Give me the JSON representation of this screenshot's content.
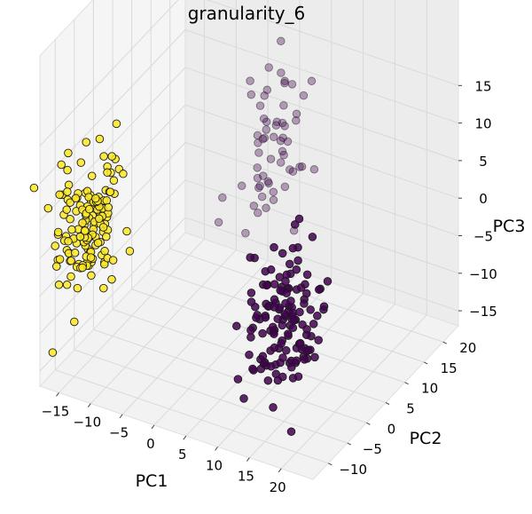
{
  "chart_data": {
    "type": "scatter",
    "title": "granularity_6",
    "xlabel": "PC1",
    "ylabel": "PC2",
    "zlabel": "PC3",
    "xlim": [
      -18,
      25
    ],
    "ylim": [
      -14,
      24
    ],
    "zlim": [
      -17,
      19
    ],
    "xticks": [
      "−15",
      "−10",
      "−5",
      "0",
      "5",
      "10",
      "15",
      "20"
    ],
    "yticks": [
      "−10",
      "−5",
      "0",
      "5",
      "10",
      "15",
      "20"
    ],
    "zticks": [
      "−15",
      "−10",
      "−5",
      "0",
      "5",
      "10",
      "15"
    ],
    "grid": true,
    "projection": "3d",
    "series": [
      {
        "color": "#440154",
        "center": [
          18,
          -10,
          0
        ],
        "spread": [
          2.5,
          3.5,
          4.5
        ],
        "count": 140
      },
      {
        "color": "#fde725",
        "center": [
          -16,
          -5,
          0
        ],
        "spread": [
          1.5,
          3.5,
          4.5
        ],
        "count": 150
      },
      {
        "color": "#440154",
        "center": [
          -1,
          20,
          3
        ],
        "spread": [
          1.5,
          3.5,
          5.0
        ],
        "count": 60,
        "alpha": 0.35
      }
    ]
  }
}
